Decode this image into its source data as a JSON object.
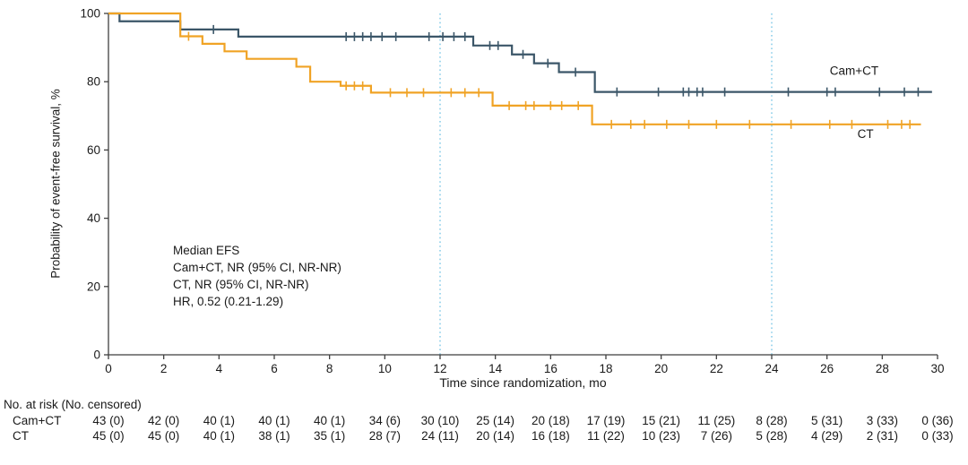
{
  "chart_data": {
    "type": "line",
    "subtype": "kaplan-meier-step-survival",
    "title": "",
    "xlabel": "Time since randomization, mo",
    "ylabel": "Probability of event-free survival, %",
    "xlim": [
      0,
      30
    ],
    "ylim": [
      0,
      100
    ],
    "x_ticks": [
      0,
      2,
      4,
      6,
      8,
      10,
      12,
      14,
      16,
      18,
      20,
      22,
      24,
      26,
      28,
      30
    ],
    "y_ticks": [
      0,
      20,
      40,
      60,
      80,
      100
    ],
    "grid": false,
    "legend_position": "curve-end-labels",
    "reference_lines_x": [
      12,
      24
    ],
    "reference_line_color": "#7cc8e6",
    "axis_color": "#3f3f3f",
    "text_color": "#1a1a1a",
    "annotations": [
      "Median EFS",
      "Cam+CT, NR (95% CI, NR-NR)",
      "CT, NR (95% CI, NR-NR)",
      "HR, 0.52 (0.21-1.29)"
    ],
    "series": [
      {
        "name": "Cam+CT",
        "label": "Cam+CT",
        "color": "#3b5668",
        "start": [
          0,
          100
        ],
        "drops": [
          [
            0.4,
            97.7
          ],
          [
            2.6,
            95.3
          ],
          [
            4.7,
            93.2
          ],
          [
            13.2,
            90.6
          ],
          [
            14.6,
            88.0
          ],
          [
            15.4,
            85.4
          ],
          [
            16.3,
            82.8
          ],
          [
            17.6,
            77.0
          ]
        ],
        "end_x": 29.8,
        "label_pos": [
          26.1,
          82.0
        ],
        "censor_marks": [
          [
            3.8,
            95.3
          ],
          [
            8.6,
            93.2
          ],
          [
            8.9,
            93.2
          ],
          [
            9.2,
            93.2
          ],
          [
            9.5,
            93.2
          ],
          [
            9.9,
            93.2
          ],
          [
            10.4,
            93.2
          ],
          [
            11.6,
            93.2
          ],
          [
            12.1,
            93.2
          ],
          [
            12.5,
            93.2
          ],
          [
            12.9,
            93.2
          ],
          [
            13.8,
            90.6
          ],
          [
            14.1,
            90.6
          ],
          [
            15.0,
            88.0
          ],
          [
            15.9,
            85.4
          ],
          [
            16.9,
            82.8
          ],
          [
            18.4,
            77.0
          ],
          [
            19.9,
            77.0
          ],
          [
            20.8,
            77.0
          ],
          [
            21.0,
            77.0
          ],
          [
            21.3,
            77.0
          ],
          [
            21.5,
            77.0
          ],
          [
            22.3,
            77.0
          ],
          [
            24.6,
            77.0
          ],
          [
            26.0,
            77.0
          ],
          [
            26.3,
            77.0
          ],
          [
            27.9,
            77.0
          ],
          [
            28.8,
            77.0
          ],
          [
            29.3,
            77.0
          ]
        ]
      },
      {
        "name": "CT",
        "label": "CT",
        "color": "#f0a325",
        "start": [
          0,
          100
        ],
        "drops": [
          [
            2.6,
            93.3
          ],
          [
            3.4,
            91.1
          ],
          [
            4.2,
            88.9
          ],
          [
            5.0,
            86.7
          ],
          [
            6.8,
            84.4
          ],
          [
            7.3,
            80.0
          ],
          [
            8.4,
            78.8
          ],
          [
            9.5,
            76.8
          ],
          [
            13.9,
            73.0
          ],
          [
            17.5,
            67.5
          ]
        ],
        "end_x": 29.4,
        "label_pos": [
          27.1,
          63.5
        ],
        "censor_marks": [
          [
            2.9,
            93.3
          ],
          [
            8.6,
            78.8
          ],
          [
            8.9,
            78.8
          ],
          [
            9.2,
            78.8
          ],
          [
            10.2,
            76.8
          ],
          [
            10.8,
            76.8
          ],
          [
            11.4,
            76.8
          ],
          [
            12.4,
            76.8
          ],
          [
            12.9,
            76.8
          ],
          [
            13.4,
            76.8
          ],
          [
            14.5,
            73.0
          ],
          [
            15.1,
            73.0
          ],
          [
            15.4,
            73.0
          ],
          [
            16.0,
            73.0
          ],
          [
            16.4,
            73.0
          ],
          [
            17.0,
            73.0
          ],
          [
            18.2,
            67.5
          ],
          [
            18.9,
            67.5
          ],
          [
            19.4,
            67.5
          ],
          [
            20.2,
            67.5
          ],
          [
            21.0,
            67.5
          ],
          [
            22.0,
            67.5
          ],
          [
            23.2,
            67.5
          ],
          [
            24.7,
            67.5
          ],
          [
            26.1,
            67.5
          ],
          [
            26.9,
            67.5
          ],
          [
            28.2,
            67.5
          ],
          [
            28.7,
            67.5
          ],
          [
            29.0,
            67.5
          ]
        ]
      }
    ]
  },
  "risk_table": {
    "header": "No. at risk (No. censored)",
    "time_points": [
      0,
      2,
      4,
      6,
      8,
      10,
      12,
      14,
      16,
      18,
      20,
      22,
      24,
      26,
      28,
      30
    ],
    "rows": [
      {
        "label": "Cam+CT",
        "values": [
          "43 (0)",
          "42 (0)",
          "40 (1)",
          "40 (1)",
          "40 (1)",
          "34 (6)",
          "30 (10)",
          "25 (14)",
          "20 (18)",
          "17 (19)",
          "15 (21)",
          "11 (25)",
          "8 (28)",
          "5 (31)",
          "3 (33)",
          "0 (36)"
        ]
      },
      {
        "label": "CT",
        "values": [
          "45 (0)",
          "45 (0)",
          "40 (1)",
          "38 (1)",
          "35 (1)",
          "28 (7)",
          "24 (11)",
          "20 (14)",
          "16 (18)",
          "11 (22)",
          "10 (23)",
          "7 (26)",
          "5 (28)",
          "4 (29)",
          "2 (31)",
          "0 (33)"
        ]
      }
    ]
  }
}
